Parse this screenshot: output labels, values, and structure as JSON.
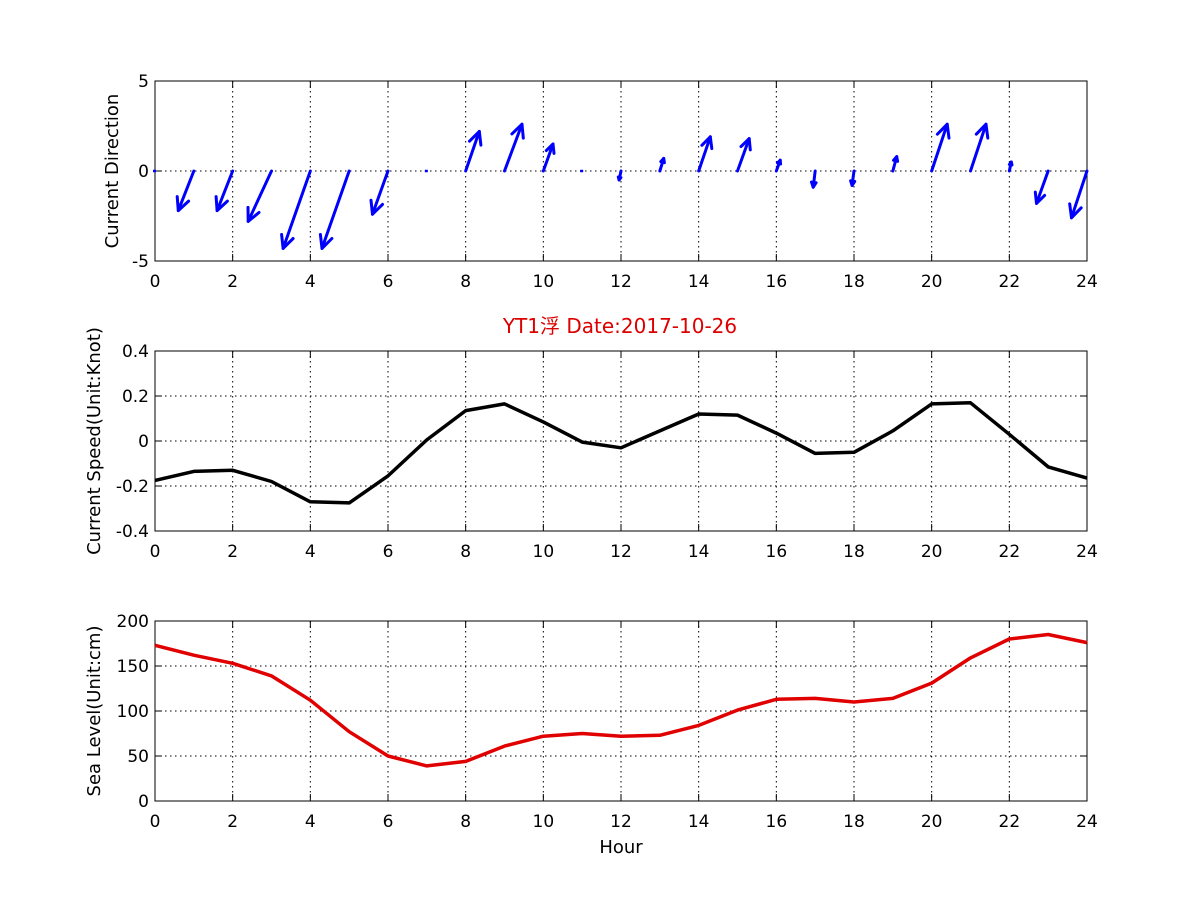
{
  "title": "YT1浮    Date:2017-10-26",
  "title_color": "#dd0000",
  "chart_data": [
    {
      "type": "quiver",
      "ylabel": "Current Direction",
      "xlim": [
        0,
        24
      ],
      "ylim": [
        -5,
        5
      ],
      "xticks": [
        0,
        2,
        4,
        6,
        8,
        10,
        12,
        14,
        16,
        18,
        20,
        22,
        24
      ],
      "yticks": [
        -5,
        0,
        5
      ],
      "grid": true,
      "color": "#0000ff",
      "arrows": [
        {
          "x": 0,
          "u": 0,
          "v": 0
        },
        {
          "x": 1,
          "u": -0.4,
          "v": -2.2
        },
        {
          "x": 2,
          "u": -0.4,
          "v": -2.2
        },
        {
          "x": 3,
          "u": -0.6,
          "v": -2.8
        },
        {
          "x": 4,
          "u": -0.7,
          "v": -4.3
        },
        {
          "x": 5,
          "u": -0.7,
          "v": -4.3
        },
        {
          "x": 6,
          "u": -0.4,
          "v": -2.4
        },
        {
          "x": 7,
          "u": 0,
          "v": 0
        },
        {
          "x": 8,
          "u": 0.35,
          "v": 2.2
        },
        {
          "x": 9,
          "u": 0.45,
          "v": 2.6
        },
        {
          "x": 10,
          "u": 0.25,
          "v": 1.5
        },
        {
          "x": 11,
          "u": 0,
          "v": 0
        },
        {
          "x": 12,
          "u": -0.05,
          "v": -0.5
        },
        {
          "x": 13,
          "u": 0.1,
          "v": 0.7
        },
        {
          "x": 14,
          "u": 0.3,
          "v": 1.9
        },
        {
          "x": 15,
          "u": 0.3,
          "v": 1.8
        },
        {
          "x": 16,
          "u": 0.1,
          "v": 0.6
        },
        {
          "x": 17,
          "u": -0.05,
          "v": -0.9
        },
        {
          "x": 18,
          "u": -0.05,
          "v": -0.8
        },
        {
          "x": 19,
          "u": 0.1,
          "v": 0.8
        },
        {
          "x": 20,
          "u": 0.4,
          "v": 2.6
        },
        {
          "x": 21,
          "u": 0.4,
          "v": 2.6
        },
        {
          "x": 22,
          "u": 0.05,
          "v": 0.5
        },
        {
          "x": 23,
          "u": -0.3,
          "v": -1.8
        },
        {
          "x": 24,
          "u": -0.4,
          "v": -2.6
        }
      ]
    },
    {
      "type": "line",
      "ylabel": "Current Speed(Unit:Knot)",
      "xlim": [
        0,
        24
      ],
      "ylim": [
        -0.4,
        0.4
      ],
      "xticks": [
        0,
        2,
        4,
        6,
        8,
        10,
        12,
        14,
        16,
        18,
        20,
        22,
        24
      ],
      "yticks": [
        -0.4,
        -0.2,
        0,
        0.2,
        0.4
      ],
      "ytick_labels": [
        "-0.4",
        "-0.2",
        "0",
        "0.2",
        "0.4"
      ],
      "grid": true,
      "series": [
        {
          "color": "#000000",
          "x": [
            0,
            1,
            2,
            3,
            4,
            5,
            6,
            7,
            8,
            9,
            10,
            11,
            12,
            13,
            14,
            15,
            16,
            17,
            18,
            19,
            20,
            21,
            22,
            23,
            24
          ],
          "values": [
            -0.175,
            -0.135,
            -0.13,
            -0.18,
            -0.27,
            -0.275,
            -0.155,
            0.005,
            0.135,
            0.165,
            0.085,
            -0.005,
            -0.03,
            0.045,
            0.12,
            0.115,
            0.035,
            -0.055,
            -0.05,
            0.045,
            0.165,
            0.17,
            0.03,
            -0.115,
            -0.165
          ]
        }
      ]
    },
    {
      "type": "line",
      "ylabel": "Sea Level(Unit:cm)",
      "xlabel": "Hour",
      "xlim": [
        0,
        24
      ],
      "ylim": [
        0,
        200
      ],
      "xticks": [
        0,
        2,
        4,
        6,
        8,
        10,
        12,
        14,
        16,
        18,
        20,
        22,
        24
      ],
      "yticks": [
        0,
        50,
        100,
        150,
        200
      ],
      "ytick_labels": [
        "0",
        "50",
        "100",
        "150",
        "200"
      ],
      "grid": true,
      "series": [
        {
          "color": "#e00000",
          "x": [
            0,
            1,
            2,
            3,
            4,
            5,
            6,
            7,
            8,
            9,
            10,
            11,
            12,
            13,
            14,
            15,
            16,
            17,
            18,
            19,
            20,
            21,
            22,
            23,
            24
          ],
          "values": [
            173,
            162,
            153,
            139,
            112,
            77,
            50,
            39,
            44,
            61,
            72,
            75,
            72,
            73,
            84,
            101,
            113,
            114,
            110,
            114,
            131,
            159,
            180,
            185,
            176
          ]
        }
      ]
    }
  ]
}
